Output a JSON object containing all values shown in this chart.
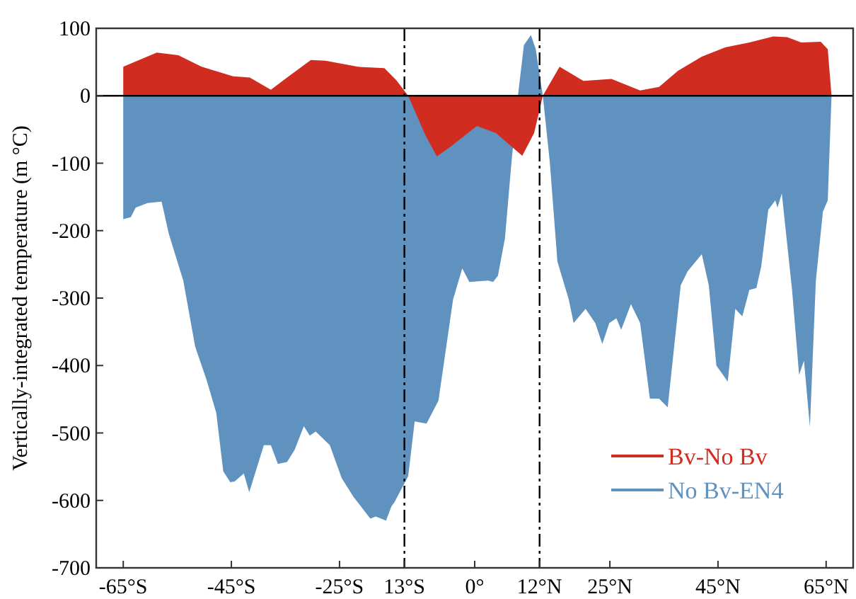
{
  "chart_data": {
    "type": "area",
    "ylabel": "Vertically-integrated temperature (m °C)",
    "xlim": [
      -70,
      70
    ],
    "xticks": [
      {
        "value": -65,
        "label": "-65°S"
      },
      {
        "value": -45,
        "label": "-45°S"
      },
      {
        "value": -25,
        "label": "-25°S"
      },
      {
        "value": -13,
        "label": "13°S"
      },
      {
        "value": 0,
        "label": "0°"
      },
      {
        "value": 12,
        "label": "12°N"
      },
      {
        "value": 25,
        "label": "25°N"
      },
      {
        "value": 45,
        "label": "45°N"
      },
      {
        "value": 65,
        "label": "65°N"
      }
    ],
    "ylim": [
      -700,
      100
    ],
    "yticks": [
      100,
      0,
      -100,
      -200,
      -300,
      -400,
      -500,
      -600,
      -700
    ],
    "series": [
      {
        "name": "No Bv-EN4",
        "color": "#6092c0",
        "x": [
          -65,
          -63.6,
          -62.7,
          -60.5,
          -57.9,
          -56.6,
          -53.9,
          -51.7,
          -49.6,
          -47.8,
          -46.5,
          -45.2,
          -44.4,
          -42.7,
          -41.7,
          -39,
          -37.7,
          -36.4,
          -34.7,
          -33.3,
          -31.6,
          -30.5,
          -29.4,
          -26.8,
          -24.6,
          -22.4,
          -19.3,
          -18.3,
          -16.4,
          -15.4,
          -14.8,
          -12.3,
          -11.1,
          -8.9,
          -6.7,
          -4,
          -2.3,
          -1,
          2.5,
          3.4,
          4.3,
          5.6,
          6.8,
          8,
          9.1,
          10.4,
          11.3,
          12.6,
          13.9,
          15.3,
          17.4,
          18.3,
          20.5,
          22.3,
          23.6,
          24.9,
          26.2,
          27.1,
          28.9,
          30.6,
          32.4,
          34.1,
          35.7,
          38.1,
          39.4,
          42,
          43.3,
          44.7,
          46.8,
          48.2,
          49.5,
          50.8,
          52.1,
          53,
          54.3,
          55.6,
          56,
          56.8,
          58.7,
          60,
          60.9,
          62,
          63.1,
          64.4,
          65.3,
          66
        ],
        "values": [
          -183,
          -180,
          -166,
          -159,
          -157,
          -204,
          -274,
          -372,
          -421,
          -470,
          -557,
          -573,
          -572,
          -560,
          -588,
          -518,
          -518,
          -546,
          -543,
          -525,
          -490,
          -504,
          -498,
          -518,
          -567,
          -595,
          -627,
          -624,
          -630,
          -609,
          -602,
          -564,
          -483,
          -486,
          -452,
          -302,
          -256,
          -276,
          -274,
          -276,
          -267,
          -211,
          -99,
          0,
          75,
          90,
          69,
          0,
          -99,
          -246,
          -302,
          -337,
          -316,
          -337,
          -368,
          -337,
          -330,
          -347,
          -309,
          -337,
          -449,
          -449,
          -462,
          -281,
          -260,
          -235,
          -281,
          -400,
          -424,
          -316,
          -327,
          -288,
          -285,
          -253,
          -169,
          -155,
          -166,
          -145,
          -288,
          -414,
          -393,
          -491,
          -274,
          -172,
          -155,
          0
        ]
      },
      {
        "name": "Bv-No Bv",
        "color": "#d02c1f",
        "x": [
          -65,
          -58.8,
          -54.8,
          -50.5,
          -44.7,
          -41.6,
          -37.7,
          -34.7,
          -30.3,
          -27.6,
          -21.6,
          -16.7,
          -14.5,
          -12.3,
          -9.2,
          -7,
          -4.4,
          0.4,
          3.9,
          8.8,
          11,
          12.6,
          15.7,
          20.1,
          25.3,
          30.6,
          34.1,
          37.6,
          42,
          46.4,
          50.8,
          55.2,
          57.8,
          60.4,
          64,
          65.3,
          66
        ],
        "values": [
          43,
          64,
          60,
          43,
          29,
          27,
          9,
          27,
          53,
          52,
          43,
          41,
          23,
          0,
          -57,
          -90,
          -75,
          -45,
          -55,
          -89,
          -55,
          0,
          43,
          22,
          25,
          8,
          13,
          37,
          58,
          72,
          79,
          88,
          87,
          79,
          80,
          69,
          0
        ]
      }
    ],
    "ref_lines": [
      {
        "axis": "x",
        "value": -13,
        "line_style": "dashed"
      },
      {
        "axis": "x",
        "value": 12,
        "line_style": "dashed"
      },
      {
        "axis": "y",
        "value": 0,
        "line_style": "solid"
      }
    ],
    "legend": "bottom right",
    "grid": false
  }
}
